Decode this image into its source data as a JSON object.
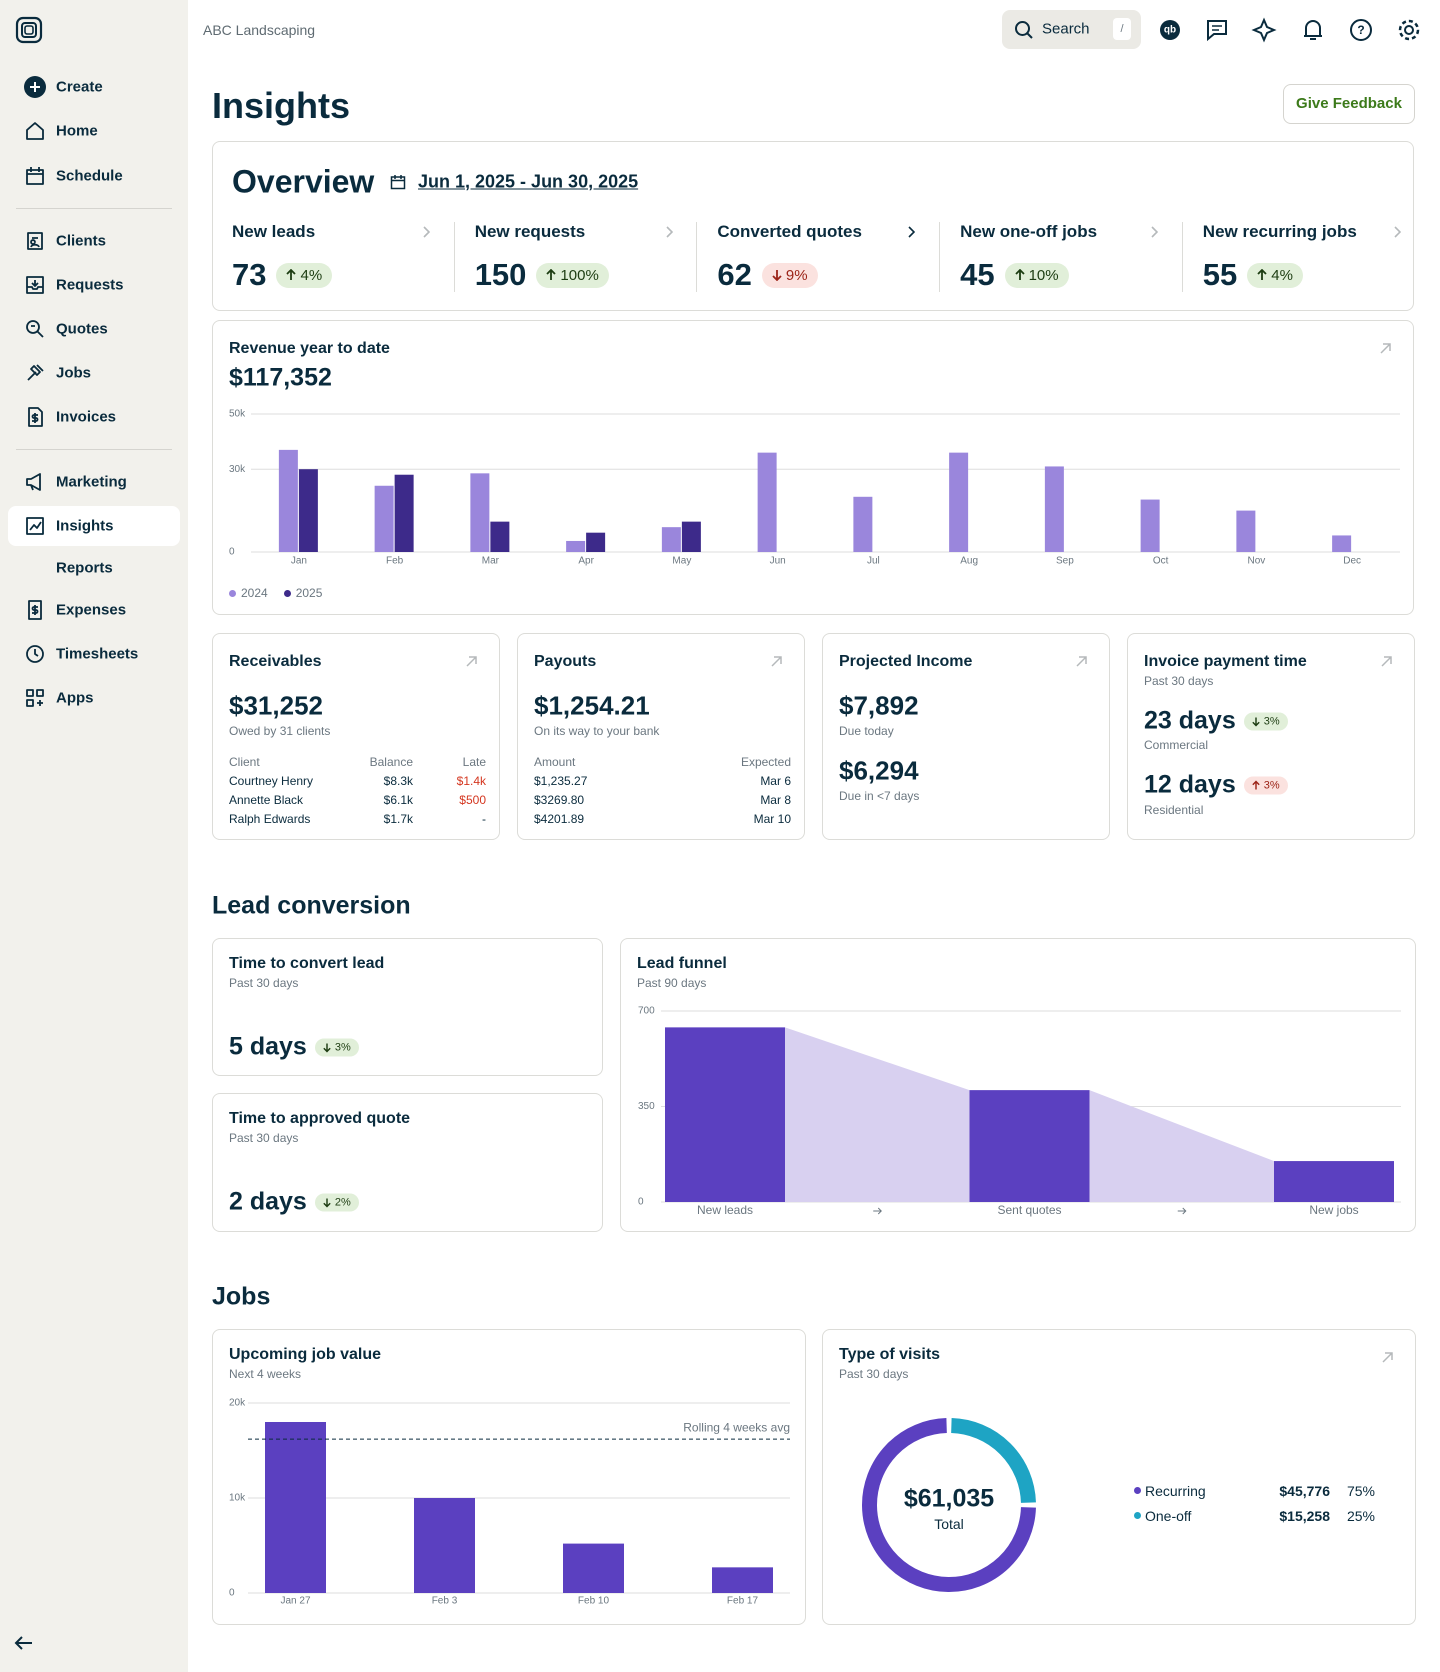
{
  "header": {
    "company": "ABC Landscaping",
    "search_placeholder": "Search",
    "search_shortcut": "/"
  },
  "sidebar": {
    "items": [
      "Create",
      "Home",
      "Schedule",
      "Clients",
      "Requests",
      "Quotes",
      "Jobs",
      "Invoices",
      "Marketing",
      "Insights",
      "Reports",
      "Expenses",
      "Timesheets",
      "Apps"
    ],
    "active": "Insights"
  },
  "page_title": "Insights",
  "feedback_button": "Give Feedback",
  "overview": {
    "title": "Overview",
    "date_range": "Jun 1, 2025 - Jun 30, 2025",
    "metrics": [
      {
        "label": "New leads",
        "value": 73,
        "change": "4%",
        "direction": "up",
        "tone": "positive"
      },
      {
        "label": "New requests",
        "value": 150,
        "change": "100%",
        "direction": "up",
        "tone": "positive"
      },
      {
        "label": "Converted quotes",
        "value": 62,
        "change": "9%",
        "direction": "down",
        "tone": "negative"
      },
      {
        "label": "New one-off jobs",
        "value": 45,
        "change": "10%",
        "direction": "up",
        "tone": "positive"
      },
      {
        "label": "New recurring jobs",
        "value": 55,
        "change": "4%",
        "direction": "up",
        "tone": "positive"
      }
    ]
  },
  "revenue": {
    "title": "Revenue year to date",
    "total": "$117,352",
    "chart": {
      "type": "bar",
      "categories": [
        "Jan",
        "Feb",
        "Mar",
        "Apr",
        "May",
        "Jun",
        "Jul",
        "Aug",
        "Sep",
        "Oct",
        "Nov",
        "Dec"
      ],
      "series": [
        {
          "name": "2024",
          "color": "#9a86dc",
          "values": [
            37000,
            24000,
            28500,
            4000,
            9000,
            36000,
            20000,
            36000,
            31000,
            19000,
            15000,
            6000
          ]
        },
        {
          "name": "2025",
          "color": "#3d2a8a",
          "values": [
            30000,
            28000,
            11000,
            7000,
            11000,
            null,
            null,
            null,
            null,
            null,
            null,
            null
          ]
        }
      ],
      "ylim": [
        0,
        50000
      ],
      "yticks": [
        0,
        {
          "value": 30000,
          "label": "30k"
        },
        {
          "value": 50000,
          "label": "50k"
        }
      ],
      "grid": true
    }
  },
  "receivables": {
    "title": "Receivables",
    "amount": "$31,252",
    "note": "Owed by 31 clients",
    "table": {
      "columns": [
        "Client",
        "Balance",
        "Late"
      ],
      "rows": [
        [
          "Courtney Henry",
          "$8.3k",
          "$1.4k"
        ],
        [
          "Annette Black",
          "$6.1k",
          "$500"
        ],
        [
          "Ralph Edwards",
          "$1.7k",
          "-"
        ]
      ]
    }
  },
  "payouts": {
    "title": "Payouts",
    "amount": "$1,254.21",
    "note": "On its way to your bank",
    "table": {
      "columns": [
        "Amount",
        "Expected"
      ],
      "rows": [
        [
          "$1,235.27",
          "Mar 6"
        ],
        [
          "$3269.80",
          "Mar 8"
        ],
        [
          "$4201.89",
          "Mar 10"
        ]
      ]
    }
  },
  "projected_income": {
    "title": "Projected Income",
    "items": [
      {
        "amount": "$7,892",
        "note": "Due today"
      },
      {
        "amount": "$6,294",
        "note": "Due in <7 days"
      }
    ]
  },
  "invoice_payment_time": {
    "title": "Invoice payment time",
    "subtitle": "Past 30 days",
    "items": [
      {
        "value": "23 days",
        "change": "3%",
        "direction": "down",
        "tone": "positive",
        "note": "Commercial"
      },
      {
        "value": "12 days",
        "change": "3%",
        "direction": "up",
        "tone": "negative",
        "note": "Residential"
      }
    ]
  },
  "lead_conversion": {
    "heading": "Lead conversion",
    "cards": [
      {
        "title": "Time to convert lead",
        "subtitle": "Past 30 days",
        "value": "5 days",
        "change": "3%",
        "direction": "down",
        "tone": "positive"
      },
      {
        "title": "Time to approved quote",
        "subtitle": "Past 30 days",
        "value": "2 days",
        "change": "2%",
        "direction": "down",
        "tone": "positive"
      }
    ],
    "funnel": {
      "title": "Lead funnel",
      "subtitle": "Past 90 days",
      "chart": {
        "type": "funnel",
        "categories": [
          "New leads",
          "Sent quotes",
          "New jobs"
        ],
        "values": [
          640,
          410,
          150
        ],
        "color": "#5b40c0",
        "connector_color": "#d8d0f0",
        "ylim": [
          0,
          700
        ],
        "yticks": [
          0,
          350,
          700
        ],
        "grid": true
      }
    }
  },
  "jobs": {
    "heading": "Jobs",
    "upcoming": {
      "title": "Upcoming job value",
      "subtitle": "Next 4 weeks",
      "chart": {
        "type": "bar",
        "categories": [
          "Jan 27",
          "Feb 3",
          "Feb 10",
          "Feb 17"
        ],
        "values": [
          18000,
          10000,
          5200,
          2700
        ],
        "color": "#5b40c0",
        "ylim": [
          0,
          20000
        ],
        "yticks": [
          0,
          {
            "value": 10000,
            "label": "10k"
          },
          {
            "value": 20000,
            "label": "20k"
          }
        ],
        "grid": true,
        "reference_line": {
          "value": 16200,
          "label": "Rolling 4 weeks avg"
        }
      }
    },
    "visits": {
      "title": "Type of visits",
      "subtitle": "Past 30 days",
      "chart": {
        "type": "donut",
        "total": "$61,035",
        "total_label": "Total",
        "series": [
          {
            "name": "Recurring",
            "amount": "$45,776",
            "value": 75,
            "value_label": "75%",
            "color": "#5b40c0"
          },
          {
            "name": "One-off",
            "amount": "$15,258",
            "value": 25,
            "value_label": "25%",
            "color": "#1ea4c4"
          }
        ]
      }
    }
  }
}
